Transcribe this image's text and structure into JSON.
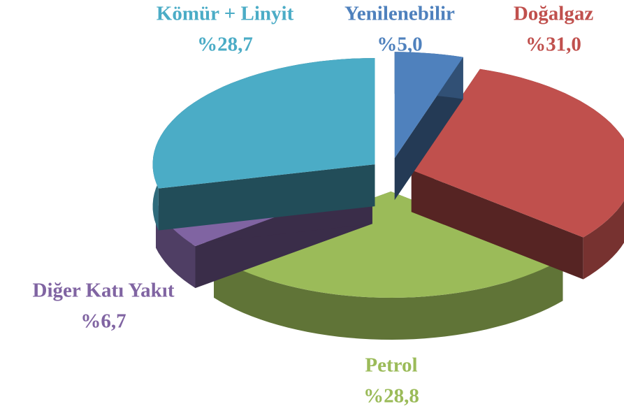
{
  "chart_data": {
    "type": "pie",
    "categories": [
      "Yenilenebilir",
      "Doğalgaz",
      "Petrol",
      "Diğer Katı Yakıt",
      "Kömür + Linyit"
    ],
    "values": [
      5.0,
      31.0,
      28.8,
      6.7,
      28.7
    ],
    "value_labels": [
      "%5,0",
      "%31,0",
      "%28,8",
      "%6,7",
      "%28,7"
    ],
    "colors": [
      "#4f81bd",
      "#c0504d",
      "#9bbb59",
      "#8064a2",
      "#4bacc6"
    ]
  }
}
